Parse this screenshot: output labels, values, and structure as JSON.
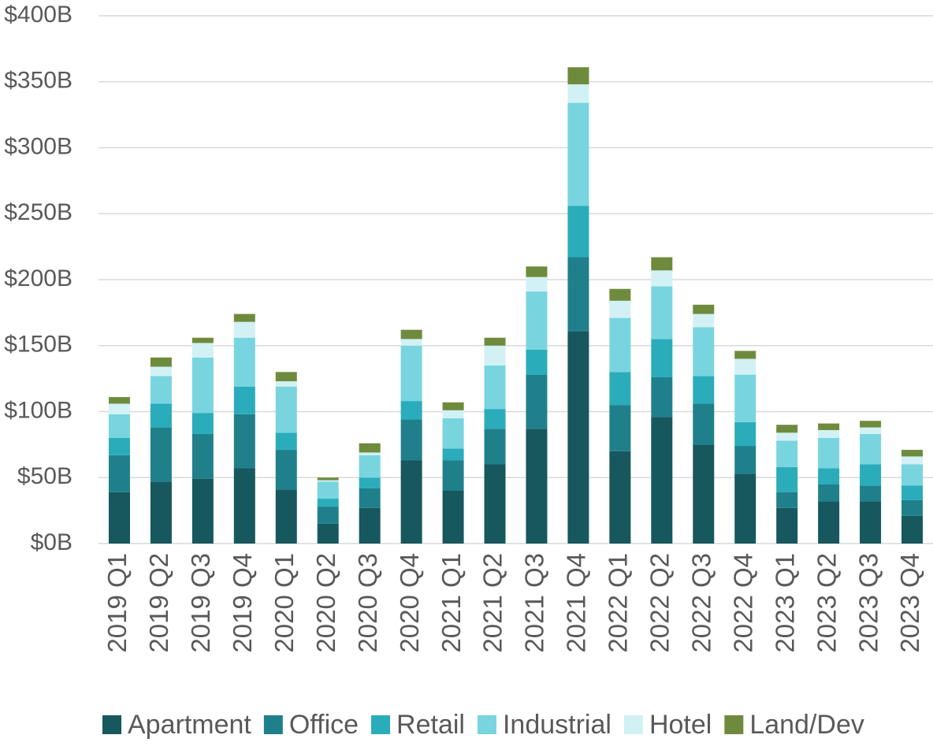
{
  "chart_data": {
    "type": "stacked-bar",
    "categories": [
      "2019 Q1",
      "2019 Q2",
      "2019 Q3",
      "2019 Q4",
      "2020 Q1",
      "2020 Q2",
      "2020 Q3",
      "2020 Q4",
      "2021 Q1",
      "2021 Q2",
      "2021 Q3",
      "2021 Q4",
      "2022 Q1",
      "2022 Q2",
      "2022 Q3",
      "2022 Q4",
      "2023 Q1",
      "2023 Q2",
      "2023 Q3",
      "2023 Q4"
    ],
    "series": [
      {
        "name": "Apartment",
        "color": "#17575e",
        "values": [
          39,
          47,
          49,
          57,
          41,
          15,
          27,
          63,
          40,
          60,
          87,
          161,
          70,
          96,
          75,
          53,
          27,
          32,
          32,
          21
        ]
      },
      {
        "name": "Office",
        "color": "#1f808c",
        "values": [
          28,
          41,
          34,
          41,
          30,
          13,
          15,
          31,
          23,
          27,
          41,
          56,
          35,
          30,
          31,
          21,
          12,
          13,
          12,
          12
        ]
      },
      {
        "name": "Retail",
        "color": "#2aacbb",
        "values": [
          13,
          18,
          16,
          21,
          13,
          6,
          8,
          14,
          9,
          15,
          19,
          39,
          25,
          29,
          21,
          18,
          19,
          12,
          16,
          11
        ]
      },
      {
        "name": "Industrial",
        "color": "#78d5df",
        "values": [
          18,
          21,
          42,
          37,
          35,
          13,
          17,
          42,
          23,
          33,
          44,
          78,
          41,
          40,
          37,
          36,
          20,
          23,
          23,
          16
        ]
      },
      {
        "name": "Hotel",
        "color": "#d2f1f5",
        "values": [
          8,
          7,
          11,
          12,
          4,
          1,
          2,
          5,
          6,
          15,
          11,
          14,
          13,
          12,
          10,
          12,
          6,
          6,
          5,
          6
        ]
      },
      {
        "name": "Land/Dev",
        "color": "#6e8b3d",
        "values": [
          5,
          7,
          4,
          6,
          7,
          2,
          7,
          7,
          6,
          6,
          8,
          13,
          9,
          10,
          7,
          6,
          6,
          5,
          5,
          5
        ]
      }
    ],
    "ylim": [
      0,
      400
    ],
    "yticks": [
      {
        "value": 0,
        "label": "$0B"
      },
      {
        "value": 50,
        "label": "$50B"
      },
      {
        "value": 100,
        "label": "$100B"
      },
      {
        "value": 150,
        "label": "$150B"
      },
      {
        "value": 200,
        "label": "$200B"
      },
      {
        "value": 250,
        "label": "$250B"
      },
      {
        "value": 300,
        "label": "$300B"
      },
      {
        "value": 350,
        "label": "$350B"
      },
      {
        "value": 400,
        "label": "$400B"
      }
    ],
    "grid": true,
    "legend": "bottom"
  }
}
